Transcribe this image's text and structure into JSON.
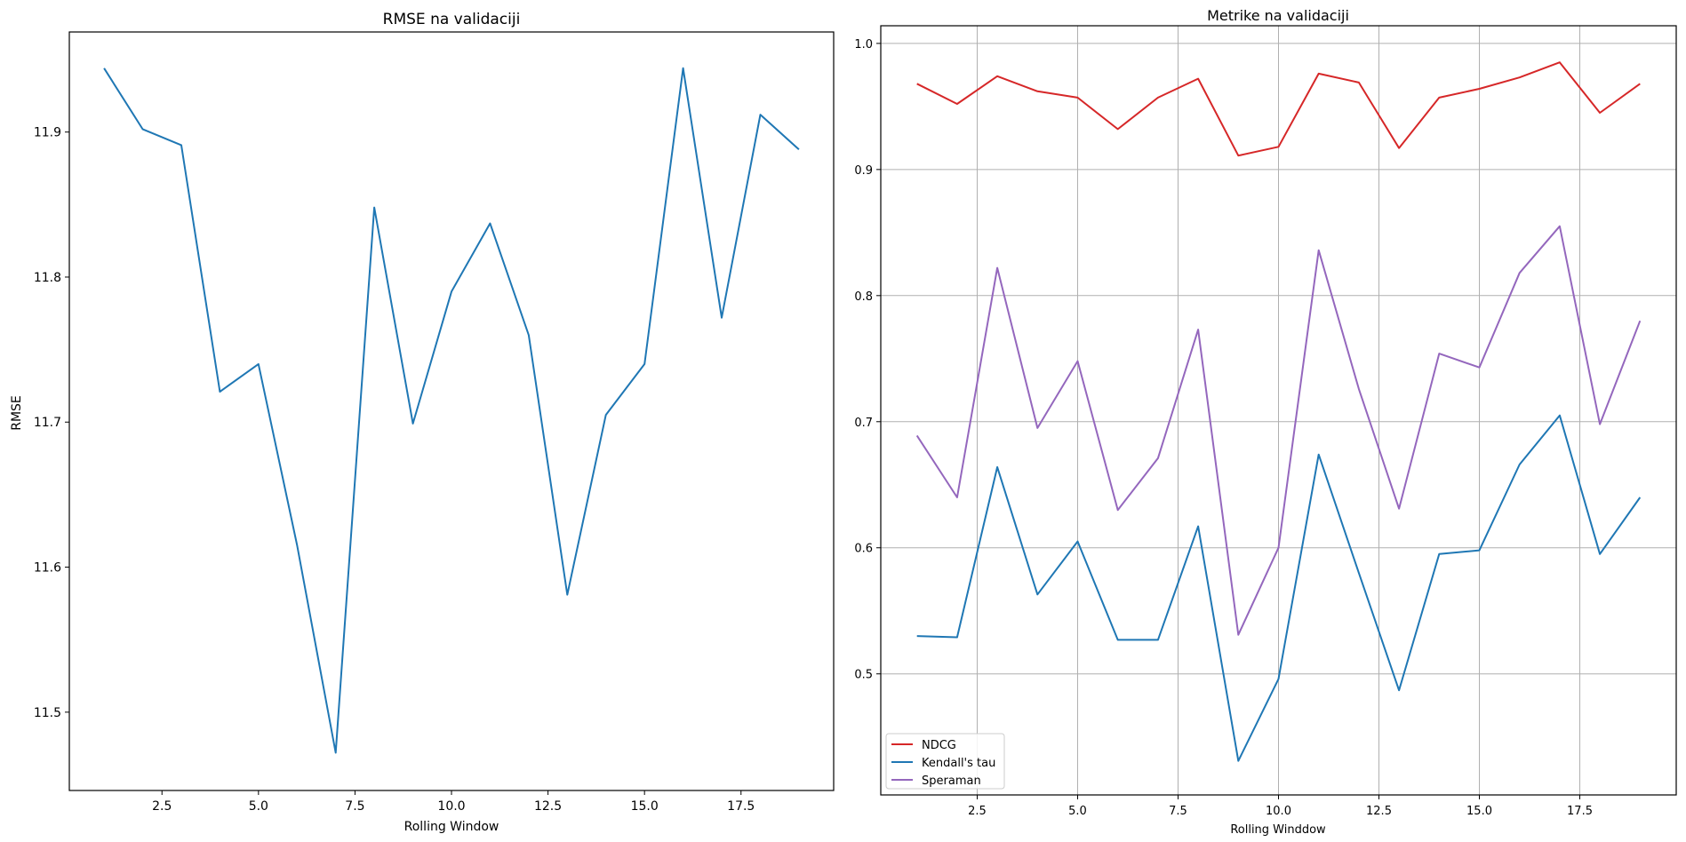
{
  "chart_data": [
    {
      "type": "line",
      "title": "RMSE na validaciji",
      "xlabel": "Rolling Window",
      "ylabel": "RMSE",
      "xlim": [
        0.1,
        19.9
      ],
      "ylim": [
        11.446,
        11.969
      ],
      "xticks": [
        2.5,
        5.0,
        7.5,
        10.0,
        12.5,
        15.0,
        17.5
      ],
      "xtick_labels": [
        "2.5",
        "5.0",
        "7.5",
        "10.0",
        "12.5",
        "15.0",
        "17.5"
      ],
      "yticks": [
        11.5,
        11.6,
        11.7,
        11.8,
        11.9
      ],
      "ytick_labels": [
        "11.5",
        "11.6",
        "11.7",
        "11.8",
        "11.9"
      ],
      "grid": false,
      "x": [
        1,
        2,
        3,
        4,
        5,
        6,
        7,
        8,
        9,
        10,
        11,
        12,
        13,
        14,
        15,
        16,
        17,
        18,
        19
      ],
      "series": [
        {
          "color": "#1f77b4",
          "values": [
            11.944,
            11.902,
            11.891,
            11.721,
            11.74,
            11.615,
            11.472,
            11.848,
            11.699,
            11.79,
            11.837,
            11.76,
            11.581,
            11.705,
            11.74,
            11.944,
            11.772,
            11.912,
            11.888
          ]
        }
      ]
    },
    {
      "type": "line",
      "title": "Metrike na validaciji",
      "xlabel": "Rolling Winddow",
      "ylabel": "",
      "xlim": [
        0.1,
        19.9
      ],
      "ylim": [
        0.404,
        1.014
      ],
      "xticks": [
        2.5,
        5.0,
        7.5,
        10.0,
        12.5,
        15.0,
        17.5
      ],
      "xtick_labels": [
        "2.5",
        "5.0",
        "7.5",
        "10.0",
        "12.5",
        "15.0",
        "17.5"
      ],
      "yticks": [
        0.5,
        0.6,
        0.7,
        0.8,
        0.9,
        1.0
      ],
      "ytick_labels": [
        "0.5",
        "0.6",
        "0.7",
        "0.8",
        "0.9",
        "1.0"
      ],
      "grid": true,
      "legend_position": "lower-left",
      "x": [
        1,
        2,
        3,
        4,
        5,
        6,
        7,
        8,
        9,
        10,
        11,
        12,
        13,
        14,
        15,
        16,
        17,
        18,
        19
      ],
      "series": [
        {
          "name": "NDCG",
          "color": "#d62728",
          "values": [
            0.968,
            0.952,
            0.974,
            0.962,
            0.957,
            0.932,
            0.957,
            0.972,
            0.911,
            0.918,
            0.976,
            0.969,
            0.917,
            0.957,
            0.964,
            0.973,
            0.985,
            0.945,
            0.968
          ]
        },
        {
          "name": "Kendall's tau",
          "color": "#1f77b4",
          "values": [
            0.53,
            0.529,
            0.664,
            0.563,
            0.605,
            0.527,
            0.527,
            0.617,
            0.431,
            0.496,
            0.674,
            0.58,
            0.487,
            0.595,
            0.598,
            0.666,
            0.705,
            0.595,
            0.64
          ]
        },
        {
          "name": "Speraman",
          "color": "#9467bd",
          "values": [
            0.689,
            0.64,
            0.822,
            0.695,
            0.748,
            0.63,
            0.671,
            0.773,
            0.531,
            0.6,
            0.836,
            0.726,
            0.631,
            0.754,
            0.743,
            0.818,
            0.855,
            0.698,
            0.78
          ]
        }
      ]
    }
  ]
}
